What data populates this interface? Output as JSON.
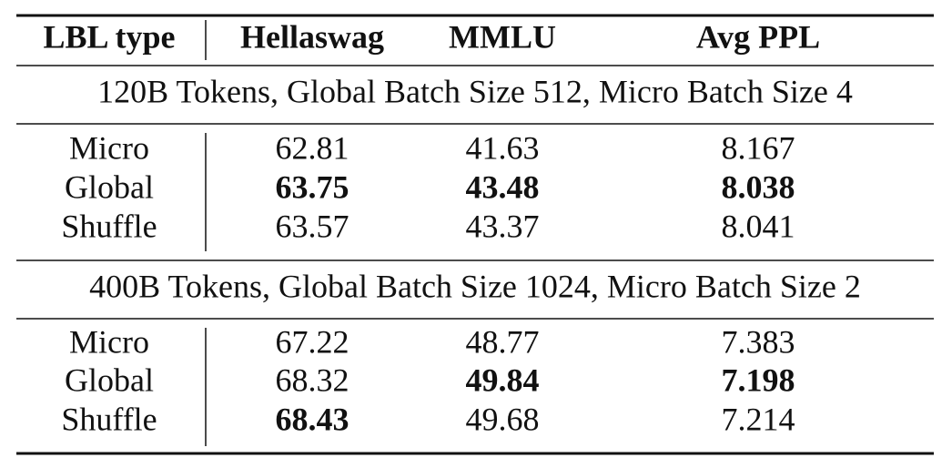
{
  "table": {
    "header": [
      "LBL type",
      "Hellaswag",
      "MMLU",
      "Avg PPL"
    ],
    "sections": [
      {
        "title": "120B Tokens, Global Batch Size 512, Micro Batch Size 4",
        "rows": [
          {
            "cells": [
              "Micro",
              "62.81",
              "41.63",
              "8.167"
            ],
            "bold": [
              false,
              false,
              false,
              false
            ]
          },
          {
            "cells": [
              "Global",
              "63.75",
              "43.48",
              "8.038"
            ],
            "bold": [
              false,
              true,
              true,
              true
            ]
          },
          {
            "cells": [
              "Shuffle",
              "63.57",
              "43.37",
              "8.041"
            ],
            "bold": [
              false,
              false,
              false,
              false
            ]
          }
        ]
      },
      {
        "title": "400B Tokens, Global Batch Size 1024, Micro Batch Size 2",
        "rows": [
          {
            "cells": [
              "Micro",
              "67.22",
              "48.77",
              "7.383"
            ],
            "bold": [
              false,
              false,
              false,
              false
            ]
          },
          {
            "cells": [
              "Global",
              "68.32",
              "49.84",
              "7.198"
            ],
            "bold": [
              false,
              false,
              true,
              true
            ]
          },
          {
            "cells": [
              "Shuffle",
              "68.43",
              "49.68",
              "7.214"
            ],
            "bold": [
              false,
              true,
              false,
              false
            ]
          }
        ]
      }
    ]
  }
}
